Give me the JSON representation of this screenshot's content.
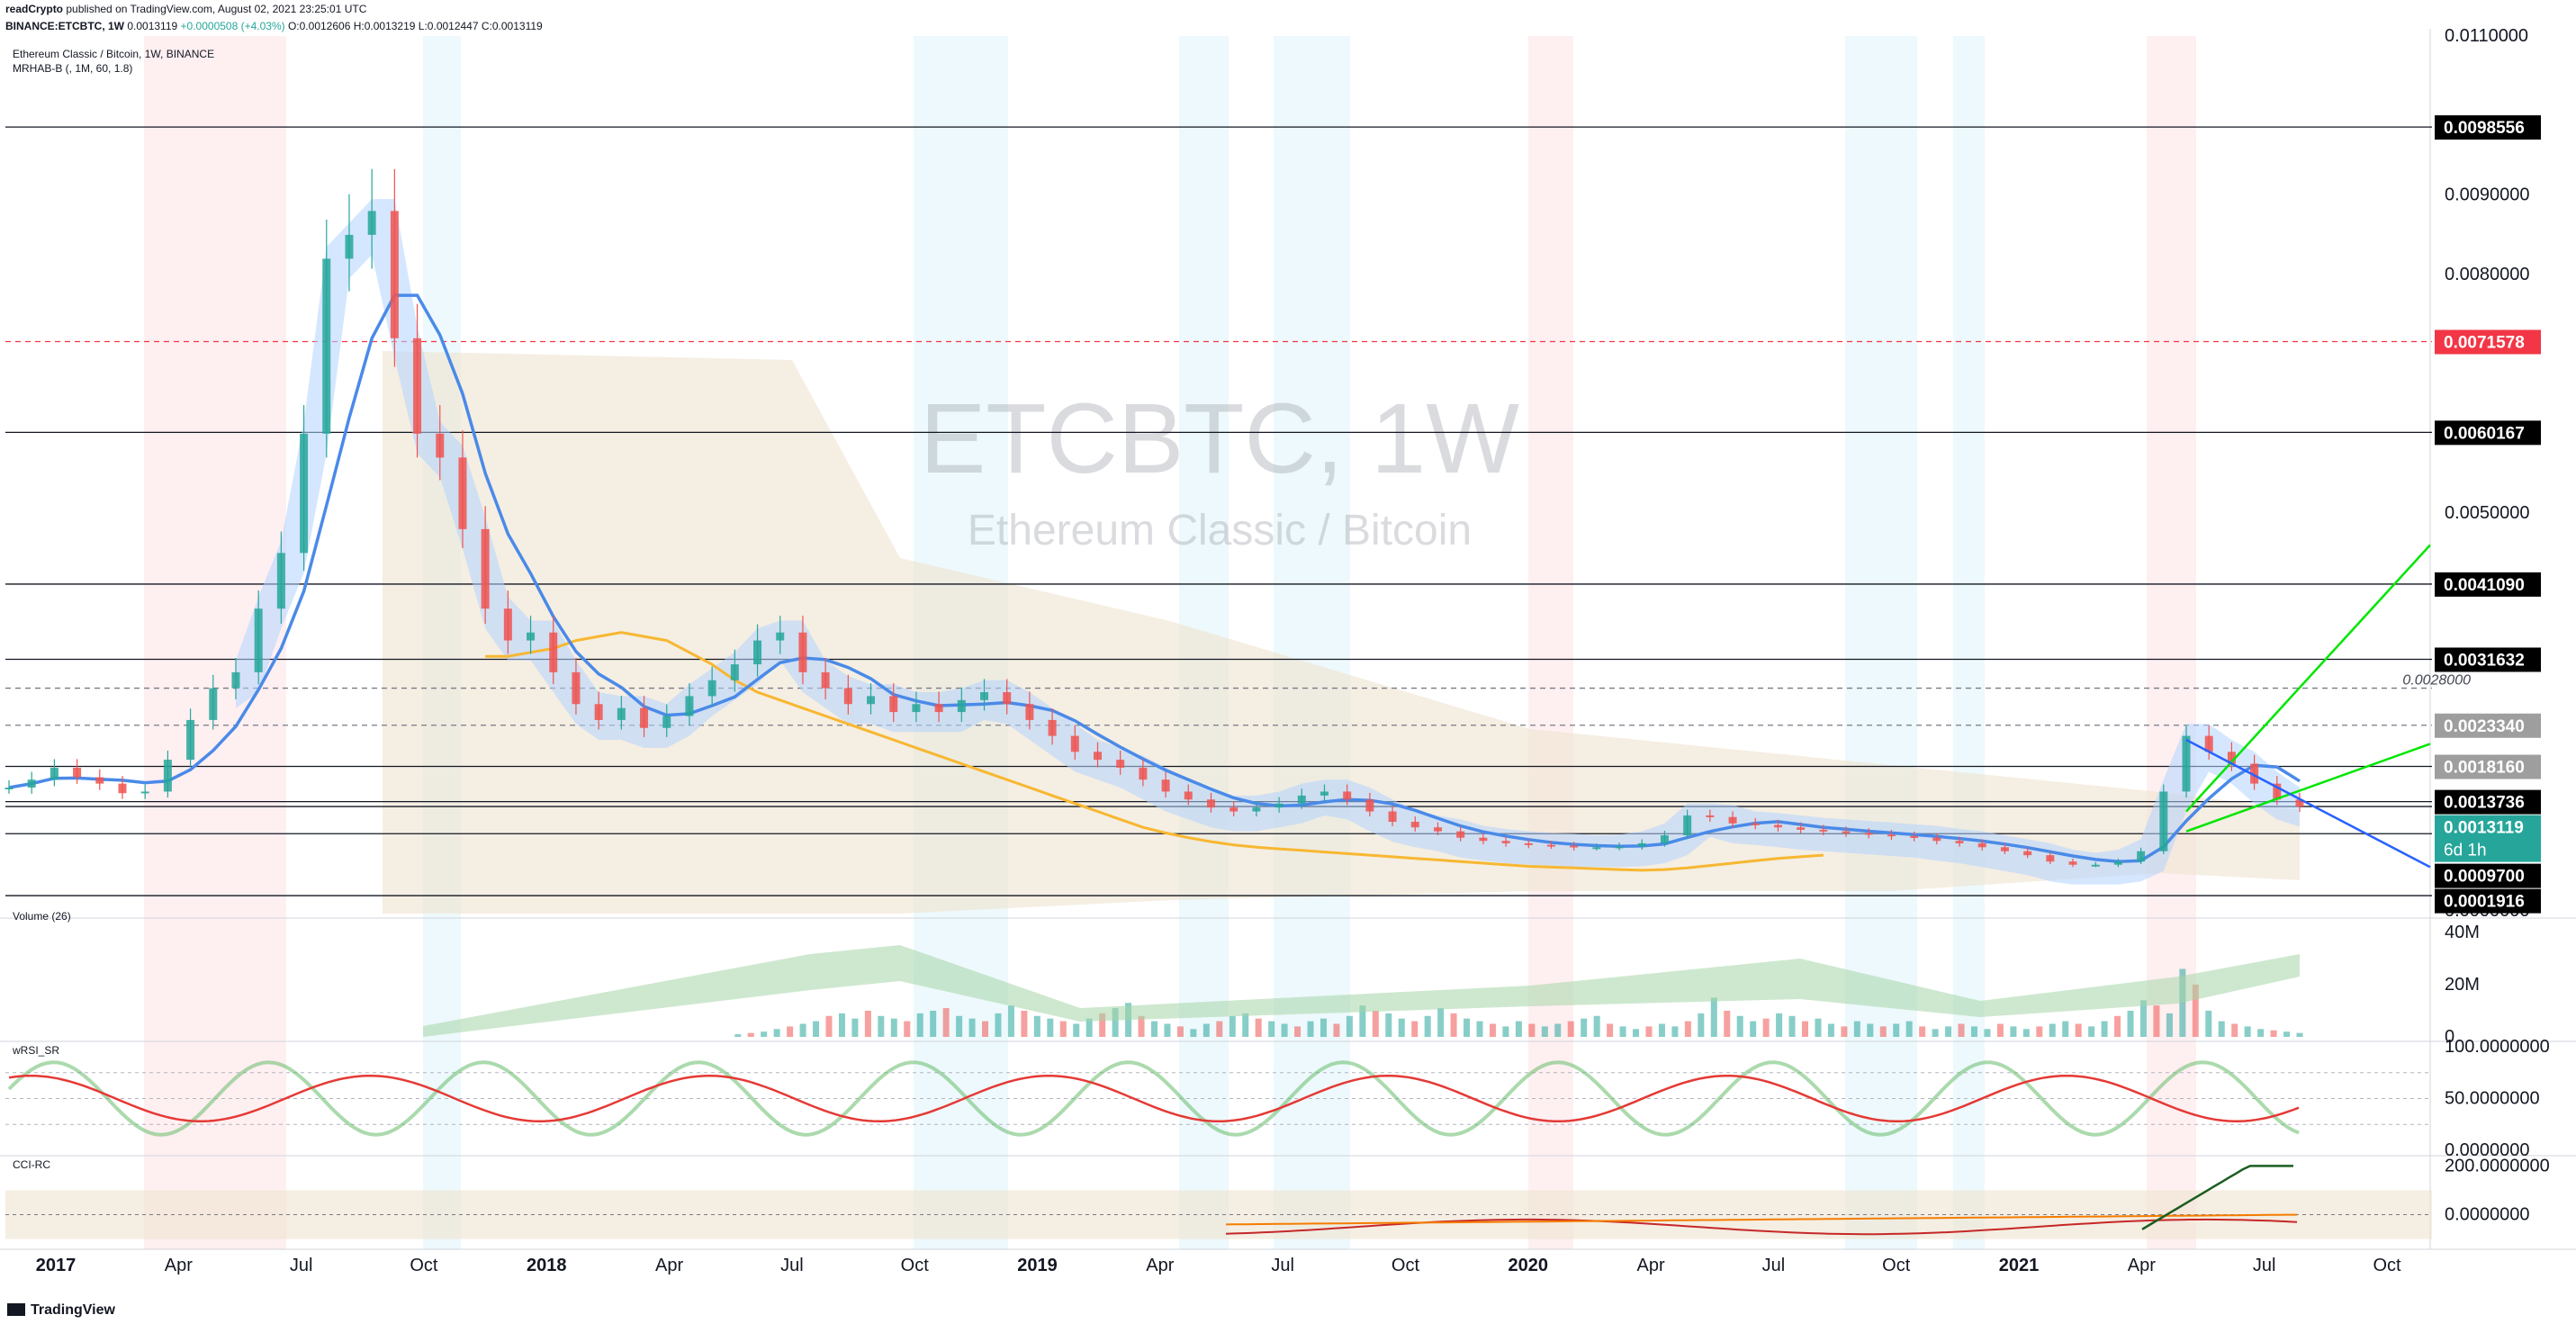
{
  "header": {
    "published_by": "readCrypto",
    "published_text": "published on TradingView.com, August 02, 2021 23:25:01 UTC",
    "symbol": "BINANCE:ETCBTC, 1W",
    "last": "0.0013119",
    "change": "+0.0000508 (+4.03%)",
    "open": "O:0.0012606",
    "high": "H:0.0013219",
    "low": "L:0.0012447",
    "close": "C:0.0013119"
  },
  "footer": {
    "brand": "TradingView"
  },
  "chart_data": [
    {
      "type": "candlestick",
      "title": "Ethereum Classic / Bitcoin, 1W, BINANCE",
      "indicator_label": "MRHAB-B (, 1M, 60, 1.8)",
      "watermark_symbol": "ETCBTC, 1W",
      "watermark_name": "Ethereum Classic / Bitcoin",
      "x_ticks": [
        "2017",
        "Apr",
        "Jul",
        "Oct",
        "2018",
        "Apr",
        "Jul",
        "Oct",
        "2019",
        "Apr",
        "Jul",
        "Oct",
        "2020",
        "Apr",
        "Jul",
        "Oct",
        "2021",
        "Apr",
        "Jul",
        "Oct"
      ],
      "y_ticks": [
        "0.0110000",
        "0.0090000",
        "0.0080000",
        "0.0050000",
        "0.0000000"
      ],
      "ylim": [
        0,
        0.011
      ],
      "price_series": [
        {
          "name": "close",
          "values": [
            0.00155,
            0.00165,
            0.0018,
            0.00168,
            0.0016,
            0.00148,
            0.0015,
            0.0019,
            0.0024,
            0.0028,
            0.003,
            0.0038,
            0.0045,
            0.006,
            0.0082,
            0.0085,
            0.0088,
            0.0072,
            0.006,
            0.0057,
            0.0048,
            0.0038,
            0.0034,
            0.0035,
            0.003,
            0.0026,
            0.0024,
            0.00255,
            0.0023,
            0.00245,
            0.0027,
            0.0029,
            0.0031,
            0.0034,
            0.0035,
            0.003,
            0.0028,
            0.0026,
            0.0027,
            0.0025,
            0.0026,
            0.0025,
            0.00265,
            0.00275,
            0.0026,
            0.0024,
            0.0022,
            0.002,
            0.0019,
            0.0018,
            0.00165,
            0.0015,
            0.0014,
            0.0013,
            0.00125,
            0.0013,
            0.00135,
            0.00145,
            0.0015,
            0.0014,
            0.00125,
            0.00112,
            0.00105,
            0.001,
            0.00092,
            0.00088,
            0.00085,
            0.00083,
            0.00082,
            0.0008,
            0.0008,
            0.00081,
            0.00085,
            0.00095,
            0.0012,
            0.00118,
            0.0011,
            0.00108,
            0.00105,
            0.00102,
            0.001,
            0.00098,
            0.00096,
            0.00094,
            0.00092,
            0.00088,
            0.00085,
            0.0008,
            0.00075,
            0.0007,
            0.00062,
            0.00058,
            0.00058,
            0.00062,
            0.00075,
            0.0015,
            0.0022,
            0.002,
            0.00185,
            0.0016,
            0.0014,
            0.00131
          ]
        },
        {
          "name": "ma_slow",
          "values": [
            null,
            null,
            null,
            null,
            null,
            null,
            null,
            null,
            null,
            null,
            null,
            null,
            null,
            null,
            null,
            null,
            null,
            null,
            null,
            null,
            null,
            0.0032,
            0.0032,
            0.00325,
            0.0033,
            0.0034,
            0.00345,
            0.0035,
            0.00345,
            0.0034,
            0.00325,
            0.0031,
            0.0029,
            0.00275,
            0.00265,
            0.00255,
            0.00245,
            0.00235,
            0.00225,
            0.00215,
            0.00205,
            0.00195,
            0.00185,
            0.00175,
            0.00165,
            0.00155,
            0.00145,
            0.00135,
            0.00125,
            0.00115,
            0.00105,
            0.00098,
            0.00092,
            0.00087,
            0.00083,
            0.0008,
            0.00078,
            0.00076,
            0.00074,
            0.00072,
            0.0007,
            0.00068,
            0.00066,
            0.00064,
            0.00062,
            0.0006,
            0.00058,
            0.00056,
            0.00055,
            0.00054,
            0.00053,
            0.00052,
            0.00051,
            0.00052,
            0.00054,
            0.00057,
            0.0006,
            0.00063,
            0.00066,
            0.00068,
            0.0007
          ]
        }
      ],
      "horizontal_levels": [
        "0.0098556",
        "0.0071578",
        "0.0060167",
        "0.0041090",
        "0.0031632",
        "0.0028000",
        "0.0023340",
        "0.0018160",
        "0.0013736",
        "0.0013119",
        "0.0009700",
        "0.0001916"
      ],
      "price_labels": [
        {
          "value": "0.0098556",
          "color": "#000000"
        },
        {
          "value": "0.0071578",
          "color": "#f23645"
        },
        {
          "value": "0.0060167",
          "color": "#000000"
        },
        {
          "value": "0.0041090",
          "color": "#000000"
        },
        {
          "value": "0.0031632",
          "color": "#000000"
        },
        {
          "value": "0.0023340",
          "color": "#9e9e9e"
        },
        {
          "value": "0.0018160",
          "color": "#9e9e9e"
        },
        {
          "value": "0.0013736",
          "color": "#000000"
        },
        {
          "value": "0.0013119",
          "color": "#26a69a"
        },
        {
          "value": "0.0009700",
          "color": "#000000"
        },
        {
          "value": "0.0001916",
          "color": "#000000"
        }
      ],
      "countdown": "6d 1h",
      "annotation": "0.0028000",
      "colors": {
        "up": "#26a69a",
        "down": "#ef5350",
        "cloud_blue": "#2962ff",
        "cloud_red": "#ef5350",
        "ma_orange": "#f7b731",
        "trend_green": "#00e600",
        "trend_blue": "#2962ff",
        "ema_line": "#8b1a1a"
      }
    },
    {
      "type": "bar",
      "title": "Volume (26)",
      "y_ticks": [
        "40M",
        "20M",
        "0"
      ],
      "ylim": [
        0,
        42000000
      ],
      "values": [
        0,
        0,
        0,
        0,
        0,
        0,
        0,
        0,
        0,
        0,
        0,
        0,
        0,
        0,
        0,
        0,
        0,
        0,
        0,
        0,
        0,
        0,
        0,
        0,
        0,
        0,
        0,
        0,
        0,
        0,
        0,
        0,
        0,
        0,
        0,
        0,
        0,
        0,
        0,
        0,
        0,
        0,
        0,
        0,
        0,
        0,
        0,
        0,
        0,
        0,
        0,
        0,
        0,
        0,
        0,
        0,
        1000000,
        1500000,
        2000000,
        3000000,
        4000000,
        5000000,
        6000000,
        8000000,
        9000000,
        7000000,
        10000000,
        8000000,
        7000000,
        6000000,
        9000000,
        10000000,
        11000000,
        8000000,
        7000000,
        6000000,
        9000000,
        12000000,
        10000000,
        8000000,
        7000000,
        6000000,
        5000000,
        7000000,
        9000000,
        11000000,
        13000000,
        8000000,
        6000000,
        5000000,
        4000000,
        3000000,
        5000000,
        6000000,
        8000000,
        9000000,
        7000000,
        6000000,
        5000000,
        4000000,
        6000000,
        7000000,
        5000000,
        8000000,
        12000000,
        10000000,
        9000000,
        7000000,
        6000000,
        8000000,
        11000000,
        9000000,
        7000000,
        6000000,
        5000000,
        4000000,
        6000000,
        5000000,
        4000000,
        5000000,
        6000000,
        7000000,
        8000000,
        5000000,
        4000000,
        3000000,
        4000000,
        5000000,
        4000000,
        6000000,
        9000000,
        15000000,
        10000000,
        8000000,
        6000000,
        7000000,
        9000000,
        8000000,
        6000000,
        7000000,
        5000000,
        4000000,
        6000000,
        5000000,
        4000000,
        5000000,
        6000000,
        4000000,
        3000000,
        4000000,
        5000000,
        4000000,
        3000000,
        5000000,
        4000000,
        3000000,
        4000000,
        5000000,
        6000000,
        5000000,
        4000000,
        6000000,
        8000000,
        10000000,
        14000000,
        12000000,
        9000000,
        26000000,
        20000000,
        10000000,
        6000000,
        5000000,
        4000000,
        3000000,
        2500000,
        2000000,
        1500000
      ]
    },
    {
      "type": "line",
      "title": "wRSI_SR",
      "y_ticks": [
        "100.0000000",
        "50.0000000",
        "0.0000000"
      ],
      "ylim": [
        0,
        100
      ]
    },
    {
      "type": "line",
      "title": "CCI-RC",
      "y_ticks": [
        "200.0000000",
        "0.0000000"
      ],
      "ylim": [
        -120,
        220
      ]
    }
  ]
}
